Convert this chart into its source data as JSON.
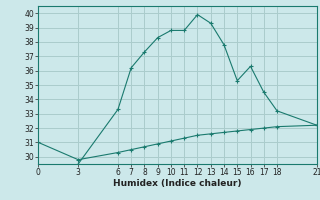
{
  "xlabel": "Humidex (Indice chaleur)",
  "bg_color": "#cce8ea",
  "grid_color": "#aacccc",
  "line_color": "#1a7a6e",
  "curve1_x": [
    3,
    6,
    7,
    8,
    9,
    10,
    11,
    12,
    13,
    14,
    15,
    16,
    17,
    18,
    21
  ],
  "curve1_y": [
    29.5,
    33.3,
    36.2,
    37.3,
    38.3,
    38.8,
    38.8,
    39.9,
    39.3,
    37.8,
    35.3,
    36.3,
    34.5,
    33.2,
    32.2
  ],
  "curve2_x": [
    0,
    3,
    6,
    7,
    8,
    9,
    10,
    11,
    12,
    13,
    14,
    15,
    16,
    17,
    18,
    21
  ],
  "curve2_y": [
    31.0,
    29.8,
    30.3,
    30.5,
    30.7,
    30.9,
    31.1,
    31.3,
    31.5,
    31.6,
    31.7,
    31.8,
    31.9,
    32.0,
    32.1,
    32.2
  ],
  "xlim": [
    0,
    21
  ],
  "ylim": [
    29.5,
    40.5
  ],
  "xticks": [
    0,
    3,
    6,
    7,
    8,
    9,
    10,
    11,
    12,
    13,
    14,
    15,
    16,
    17,
    18,
    21
  ],
  "yticks": [
    30,
    31,
    32,
    33,
    34,
    35,
    36,
    37,
    38,
    39,
    40
  ]
}
